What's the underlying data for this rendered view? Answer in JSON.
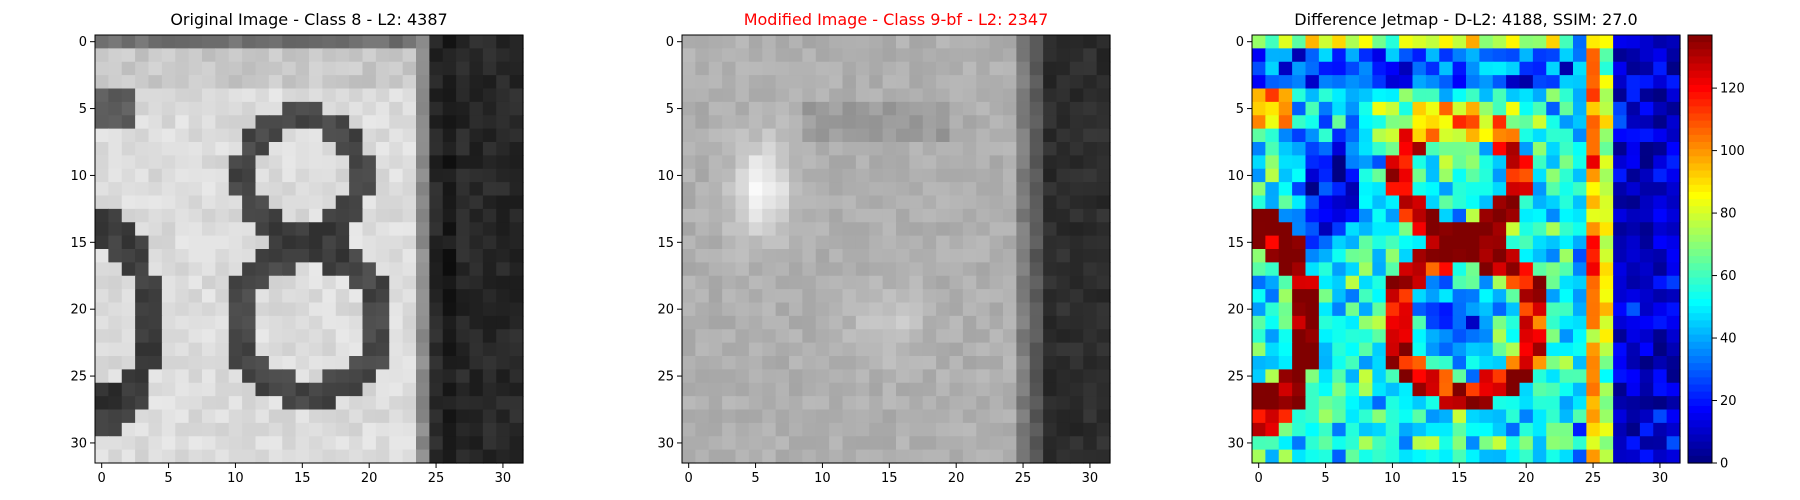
{
  "chart_data": [
    {
      "type": "heatmap",
      "title": "Original Image - Class 8 - L2: 4387",
      "title_color": "#000000",
      "colormap": "gray",
      "x_ticks": [
        0,
        5,
        10,
        15,
        20,
        25,
        30
      ],
      "y_ticks": [
        0,
        5,
        10,
        15,
        20,
        25,
        30
      ],
      "xlim": [
        -0.5,
        31.5
      ],
      "ylim": [
        31.5,
        -0.5
      ],
      "grid": false,
      "colorbar": false
    },
    {
      "type": "heatmap",
      "title": "Modified Image - Class 9-bf - L2: 2347",
      "title_color": "#ff0000",
      "colormap": "gray",
      "x_ticks": [
        0,
        5,
        10,
        15,
        20,
        25,
        30
      ],
      "y_ticks": [
        0,
        5,
        10,
        15,
        20,
        25,
        30
      ],
      "xlim": [
        -0.5,
        31.5
      ],
      "ylim": [
        31.5,
        -0.5
      ],
      "grid": false,
      "colorbar": false
    },
    {
      "type": "heatmap",
      "title": "Difference Jetmap - D-L2: 4188, SSIM: 27.0",
      "title_color": "#000000",
      "colormap": "jet",
      "x_ticks": [
        0,
        5,
        10,
        15,
        20,
        25,
        30
      ],
      "y_ticks": [
        0,
        5,
        10,
        15,
        20,
        25,
        30
      ],
      "xlim": [
        -0.5,
        31.5
      ],
      "ylim": [
        31.5,
        -0.5
      ],
      "grid": false,
      "colorbar": true,
      "colorbar_ticks": [
        0,
        20,
        40,
        60,
        80,
        100,
        120
      ],
      "colorbar_range": [
        0,
        137
      ]
    }
  ]
}
